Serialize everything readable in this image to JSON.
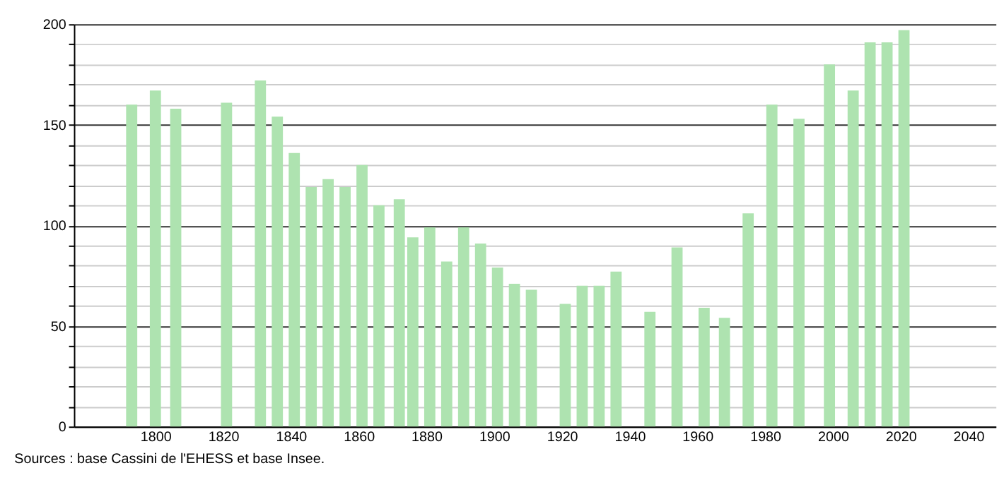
{
  "chart_data": {
    "type": "bar",
    "color": "#aee3b0",
    "x": [
      1793,
      1800,
      1806,
      1821,
      1831,
      1836,
      1841,
      1846,
      1851,
      1856,
      1861,
      1866,
      1872,
      1876,
      1881,
      1886,
      1891,
      1896,
      1901,
      1906,
      1911,
      1921,
      1926,
      1931,
      1936,
      1946,
      1954,
      1962,
      1968,
      1975,
      1982,
      1990,
      1999,
      2006,
      2011,
      2016,
      2021
    ],
    "values": [
      160,
      167,
      158,
      161,
      172,
      154,
      136,
      119,
      123,
      119,
      130,
      110,
      113,
      94,
      99,
      82,
      99,
      91,
      79,
      71,
      68,
      61,
      70,
      70,
      77,
      57,
      89,
      59,
      54,
      106,
      160,
      153,
      180,
      167,
      191,
      191,
      197
    ],
    "xlim": [
      1778,
      2046
    ],
    "xticks": [
      1800,
      1820,
      1840,
      1860,
      1880,
      1900,
      1920,
      1940,
      1960,
      1980,
      2000,
      2020,
      2040
    ],
    "ylim": [
      0,
      200
    ],
    "yticks": [
      0,
      {
        "value": 10,
        "label": null
      },
      {
        "value": 20,
        "label": null
      },
      {
        "value": 30,
        "label": null
      },
      {
        "value": 40,
        "label": null
      },
      50,
      {
        "value": 60,
        "label": null
      },
      {
        "value": 70,
        "label": null
      },
      {
        "value": 80,
        "label": null
      },
      {
        "value": 90,
        "label": null
      },
      100,
      {
        "value": 110,
        "label": null
      },
      {
        "value": 120,
        "label": null
      },
      {
        "value": 130,
        "label": null
      },
      {
        "value": 140,
        "label": null
      },
      150,
      {
        "value": 160,
        "label": null
      },
      {
        "value": 170,
        "label": null
      },
      {
        "value": 180,
        "label": null
      },
      {
        "value": 190,
        "label": null
      },
      200
    ],
    "grid": "y",
    "annotations": [
      "Sources : base Cassini de l'EHESS et base Insee."
    ]
  }
}
